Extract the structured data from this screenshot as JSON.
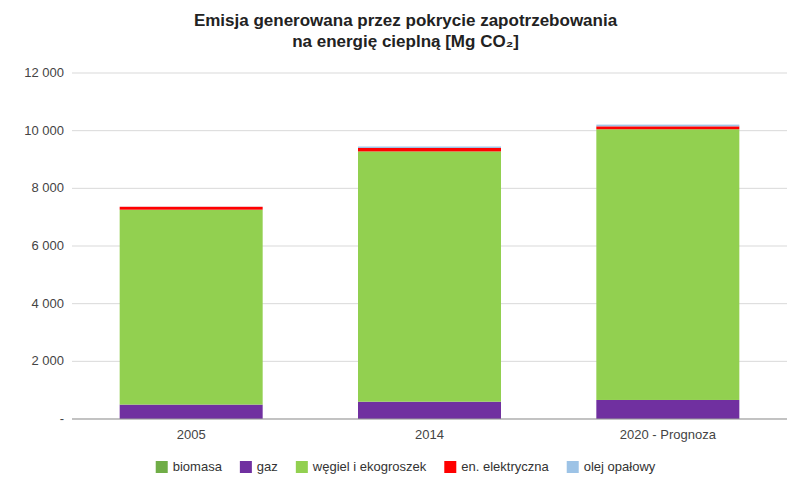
{
  "chart_data": {
    "type": "bar",
    "stacked": true,
    "title": "Emisja generowana przez pokrycie zapotrzebowania\nna energię cieplną [Mg CO₂]",
    "categories": [
      "2005",
      "2014",
      "2020 - Prognoza"
    ],
    "series": [
      {
        "name": "biomasa",
        "color": "#70AD47",
        "values": [
          0,
          0,
          0
        ]
      },
      {
        "name": "gaz",
        "color": "#7030A0",
        "values": [
          500,
          600,
          660
        ]
      },
      {
        "name": "węgiel i ekogroszek",
        "color": "#92D050",
        "values": [
          6760,
          8680,
          9390
        ]
      },
      {
        "name": "en. elektryczna",
        "color": "#FF0000",
        "values": [
          100,
          120,
          100
        ]
      },
      {
        "name": "olej opałowy",
        "color": "#9DC3E6",
        "values": [
          5,
          50,
          60
        ]
      }
    ],
    "ylim": [
      0,
      12000
    ],
    "yticks": [
      {
        "value": 0,
        "label": "-"
      },
      {
        "value": 2000,
        "label": "2 000"
      },
      {
        "value": 4000,
        "label": "4 000"
      },
      {
        "value": 6000,
        "label": "6 000"
      },
      {
        "value": 8000,
        "label": "8 000"
      },
      {
        "value": 10000,
        "label": "10 000"
      },
      {
        "value": 12000,
        "label": "12 000"
      }
    ],
    "grid": true,
    "legend": "bottom"
  }
}
